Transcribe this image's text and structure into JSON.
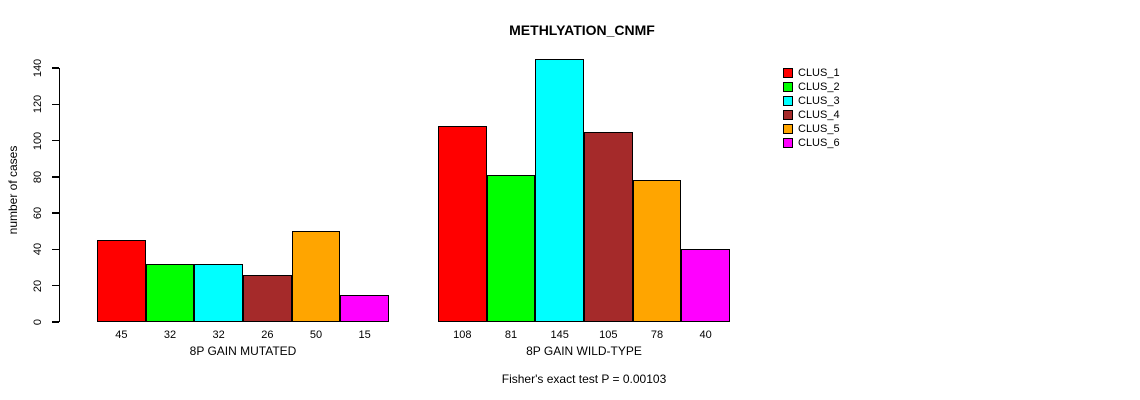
{
  "title": "METHLYATION_CNMF",
  "y_axis": {
    "label": "number of cases"
  },
  "footer": "Fisher's exact test P = 0.00103",
  "legend": {
    "items": [
      {
        "label": "CLUS_1",
        "color": "#FF0000"
      },
      {
        "label": "CLUS_2",
        "color": "#00FF00"
      },
      {
        "label": "CLUS_3",
        "color": "#00FFFF"
      },
      {
        "label": "CLUS_4",
        "color": "#A52A2A"
      },
      {
        "label": "CLUS_5",
        "color": "#FFA500"
      },
      {
        "label": "CLUS_6",
        "color": "#FF00FF"
      }
    ]
  },
  "chart_data": {
    "type": "bar",
    "title": "METHLYATION_CNMF",
    "ylabel": "number of cases",
    "xlabel": "",
    "ylim": [
      0,
      140
    ],
    "yticks": [
      0,
      20,
      40,
      60,
      80,
      100,
      120,
      140
    ],
    "grid": false,
    "legend_position": "right-outside",
    "categories": [
      "8P GAIN MUTATED",
      "8P GAIN WILD-TYPE"
    ],
    "series": [
      {
        "name": "CLUS_1",
        "color": "#FF0000",
        "values": [
          45,
          108
        ]
      },
      {
        "name": "CLUS_2",
        "color": "#00FF00",
        "values": [
          32,
          81
        ]
      },
      {
        "name": "CLUS_3",
        "color": "#00FFFF",
        "values": [
          32,
          145
        ]
      },
      {
        "name": "CLUS_4",
        "color": "#A52A2A",
        "values": [
          26,
          105
        ]
      },
      {
        "name": "CLUS_5",
        "color": "#FFA500",
        "values": [
          50,
          78
        ]
      },
      {
        "name": "CLUS_6",
        "color": "#FF00FF",
        "values": [
          15,
          40
        ]
      }
    ],
    "bar_value_labels": true,
    "annotation": "Fisher's exact test P = 0.00103"
  }
}
